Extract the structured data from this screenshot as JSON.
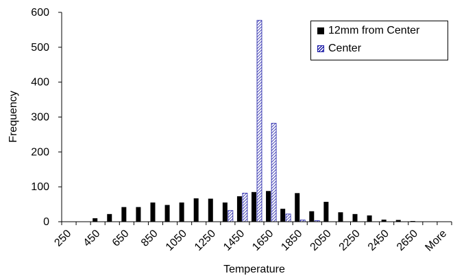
{
  "chart_data": {
    "type": "bar",
    "title": "",
    "xlabel": "Temperature",
    "ylabel": "Frequency",
    "ylim": [
      0,
      600
    ],
    "yticks": [
      "0",
      "100",
      "200",
      "300",
      "400",
      "500",
      "600"
    ],
    "categories": [
      "250",
      "350",
      "450",
      "550",
      "650",
      "750",
      "850",
      "950",
      "1050",
      "1150",
      "1250",
      "1350",
      "1450",
      "1550",
      "1650",
      "1750",
      "1850",
      "1950",
      "2050",
      "2150",
      "2250",
      "2350",
      "2450",
      "2550",
      "2650",
      "2750",
      "More"
    ],
    "category_labels_shown": [
      "250",
      "",
      "450",
      "",
      "650",
      "",
      "850",
      "",
      "1050",
      "",
      "1250",
      "",
      "1450",
      "",
      "1650",
      "",
      "1850",
      "",
      "2050",
      "",
      "2250",
      "",
      "2450",
      "",
      "2650",
      "",
      "More"
    ],
    "series": [
      {
        "name": "12mm from Center",
        "color": "#000000",
        "pattern": "solid",
        "values": [
          0,
          0,
          10,
          22,
          42,
          42,
          55,
          48,
          55,
          67,
          66,
          55,
          73,
          85,
          88,
          37,
          82,
          30,
          57,
          27,
          22,
          18,
          6,
          5,
          2,
          0,
          0
        ]
      },
      {
        "name": "Center",
        "color": "#1a1aa6",
        "pattern": "hatched",
        "values": [
          0,
          0,
          0,
          0,
          0,
          0,
          0,
          0,
          0,
          0,
          0,
          32,
          82,
          577,
          282,
          22,
          5,
          3,
          0,
          0,
          0,
          0,
          0,
          0,
          0,
          0,
          0
        ]
      }
    ],
    "legend_position": "top-right",
    "grid": false
  }
}
